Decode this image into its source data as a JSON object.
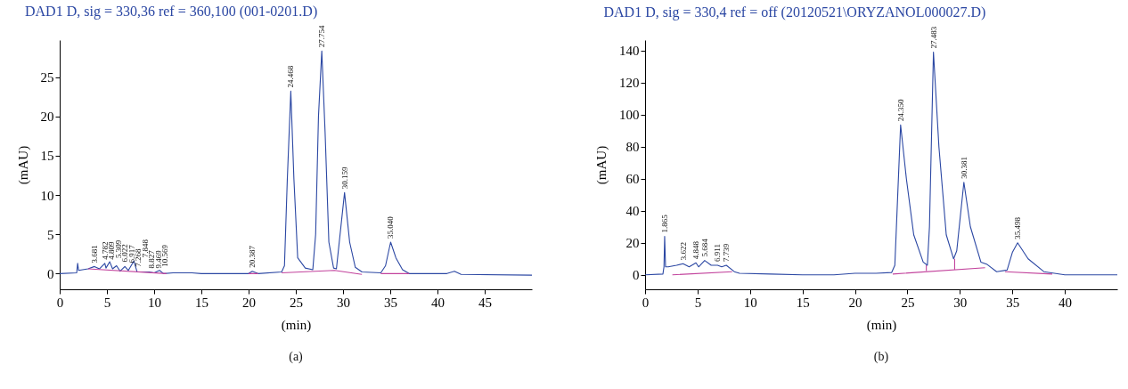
{
  "chart_data": [
    {
      "type": "line",
      "title": "DAD1 D, sig = 330,36 ref = 360,100 (001-0201.D)",
      "xlabel": "(min)",
      "ylabel": "(mAU)",
      "xlim": [
        0,
        50
      ],
      "ylim": [
        -2,
        29.7
      ],
      "xticks": [
        0,
        5,
        10,
        15,
        20,
        25,
        30,
        35,
        40,
        45
      ],
      "yticks": [
        0,
        5,
        10,
        15,
        20,
        25
      ],
      "series": [
        {
          "color": "#2b47a3",
          "x": [
            0,
            1.8,
            1.9,
            2.0,
            3,
            3.68,
            4.2,
            4.78,
            4.9,
            5.3,
            5.6,
            6.02,
            6.4,
            6.9,
            7.27,
            7.85,
            8.2,
            8.83,
            9.47,
            10,
            10.57,
            11,
            12,
            14,
            15,
            20,
            20.39,
            21,
            23.5,
            23.8,
            24.1,
            24.47,
            24.8,
            25.2,
            26,
            26.8,
            27.1,
            27.4,
            27.75,
            28.1,
            28.5,
            29,
            29.3,
            29.6,
            30.16,
            30.7,
            31.3,
            32,
            34,
            34.5,
            35.04,
            35.6,
            36.3,
            37,
            41,
            41.8,
            42.5,
            50
          ],
          "values": [
            0,
            0.1,
            1.3,
            0.4,
            0.6,
            0.9,
            0.6,
            1.3,
            0.7,
            1.5,
            0.6,
            1.0,
            0.3,
            0.9,
            0.4,
            1.6,
            0.2,
            0.2,
            0.2,
            0.1,
            0.4,
            0,
            0.1,
            0.1,
            0,
            0,
            0.3,
            0,
            0.2,
            1,
            12,
            23.2,
            12,
            2,
            0.7,
            0.5,
            5,
            20,
            28.3,
            18,
            4,
            0.7,
            0.6,
            4,
            10.3,
            4,
            0.8,
            0.2,
            0.1,
            1,
            4.0,
            2,
            0.5,
            0,
            0,
            0.3,
            -0.1,
            -0.2
          ]
        },
        {
          "color": "#c2429c",
          "x": [
            3,
            11.3,
            null,
            20,
            21,
            null,
            23.5,
            29.1,
            32,
            null,
            34,
            37
          ],
          "values": [
            0.6,
            0,
            null,
            0,
            0,
            null,
            0.1,
            0.4,
            -0.1,
            null,
            0,
            0
          ]
        }
      ],
      "annotations": [
        {
          "text": "3.681",
          "x": 3.681,
          "y": 0.9
        },
        {
          "text": "4.782",
          "x": 4.782,
          "y": 1.3
        },
        {
          "text": "4.809",
          "x": 4.809,
          "y": 1.3
        },
        {
          "text": "5.309",
          "x": 5.309,
          "y": 1.5
        },
        {
          "text": "6.022",
          "x": 6.022,
          "y": 1.0
        },
        {
          "text": "6.917",
          "x": 6.917,
          "y": 0.9
        },
        {
          "text": "7.268",
          "x": 7.268,
          "y": 0.4
        },
        {
          "text": "7.848",
          "x": 7.848,
          "y": 1.6
        },
        {
          "text": "8.827",
          "x": 8.827,
          "y": 0.2
        },
        {
          "text": "9.469",
          "x": 9.469,
          "y": 0.2
        },
        {
          "text": "10.569",
          "x": 10.569,
          "y": 0.4
        },
        {
          "text": "20.387",
          "x": 20.387,
          "y": 0.3
        },
        {
          "text": "24.468",
          "x": 24.468,
          "y": 23.2
        },
        {
          "text": "27.754",
          "x": 27.754,
          "y": 28.3
        },
        {
          "text": "30.159",
          "x": 30.159,
          "y": 10.3
        },
        {
          "text": "35.040",
          "x": 35.04,
          "y": 4.0
        },
        "(a)"
      ]
    },
    {
      "type": "line",
      "title": "DAD1 D, sig = 330,4 ref = off (20120521\\ORYZANOL000027.D)",
      "xlabel": "(min)",
      "ylabel": "(mAU)",
      "xlim": [
        0,
        45
      ],
      "ylim": [
        -9,
        146.5
      ],
      "xticks": [
        0,
        5,
        10,
        15,
        20,
        25,
        30,
        35,
        40
      ],
      "yticks": [
        0,
        20,
        40,
        60,
        80,
        100,
        120,
        140
      ],
      "series": [
        {
          "color": "#2b47a3",
          "x": [
            0,
            1.7,
            1.8,
            1.865,
            1.95,
            2.2,
            3,
            3.62,
            4.2,
            4.85,
            5.1,
            5.68,
            6.3,
            6.91,
            7.3,
            7.74,
            8.5,
            9,
            12,
            15,
            18,
            20,
            22,
            23.5,
            23.8,
            24.35,
            24.9,
            25.6,
            26.5,
            26.9,
            27.1,
            27.48,
            28,
            28.7,
            29.4,
            29.7,
            30.38,
            31,
            32,
            32.6,
            33.5,
            34.5,
            35,
            35.5,
            36.5,
            38,
            40,
            45
          ],
          "values": [
            0,
            0.5,
            5,
            24,
            5,
            5,
            6,
            7,
            5,
            7.5,
            5,
            9,
            6,
            6,
            5,
            6,
            2,
            1,
            0.5,
            0,
            0,
            1,
            1,
            1.5,
            6,
            93.6,
            60,
            25,
            8,
            6,
            30,
            139,
            80,
            25,
            10,
            15,
            57.8,
            30,
            8,
            6.5,
            2,
            3,
            14,
            20,
            10,
            2,
            0,
            0
          ]
        },
        {
          "color": "#c2429c",
          "x": [
            2.6,
            8.3,
            null,
            23.6,
            32.4,
            null,
            26.8,
            26.8,
            null,
            29.5,
            29.5,
            null,
            34.3,
            38.8
          ],
          "values": [
            0,
            2,
            null,
            0.5,
            4.5,
            null,
            2.5,
            6,
            null,
            3.5,
            10,
            null,
            2,
            0.5
          ]
        }
      ],
      "annotations": [
        {
          "text": "1.865",
          "x": 1.865,
          "y": 24
        },
        {
          "text": "3.622",
          "x": 3.622,
          "y": 7
        },
        {
          "text": "4.848",
          "x": 4.848,
          "y": 7.5
        },
        {
          "text": "5.684",
          "x": 5.684,
          "y": 9
        },
        {
          "text": "6.911",
          "x": 6.911,
          "y": 6
        },
        {
          "text": "7.739",
          "x": 7.739,
          "y": 6
        },
        {
          "text": "24.350",
          "x": 24.35,
          "y": 93.6
        },
        {
          "text": "27.483",
          "x": 27.483,
          "y": 139
        },
        {
          "text": "30.381",
          "x": 30.381,
          "y": 57.8
        },
        {
          "text": "35.498",
          "x": 35.498,
          "y": 20
        },
        "(b)"
      ]
    }
  ]
}
